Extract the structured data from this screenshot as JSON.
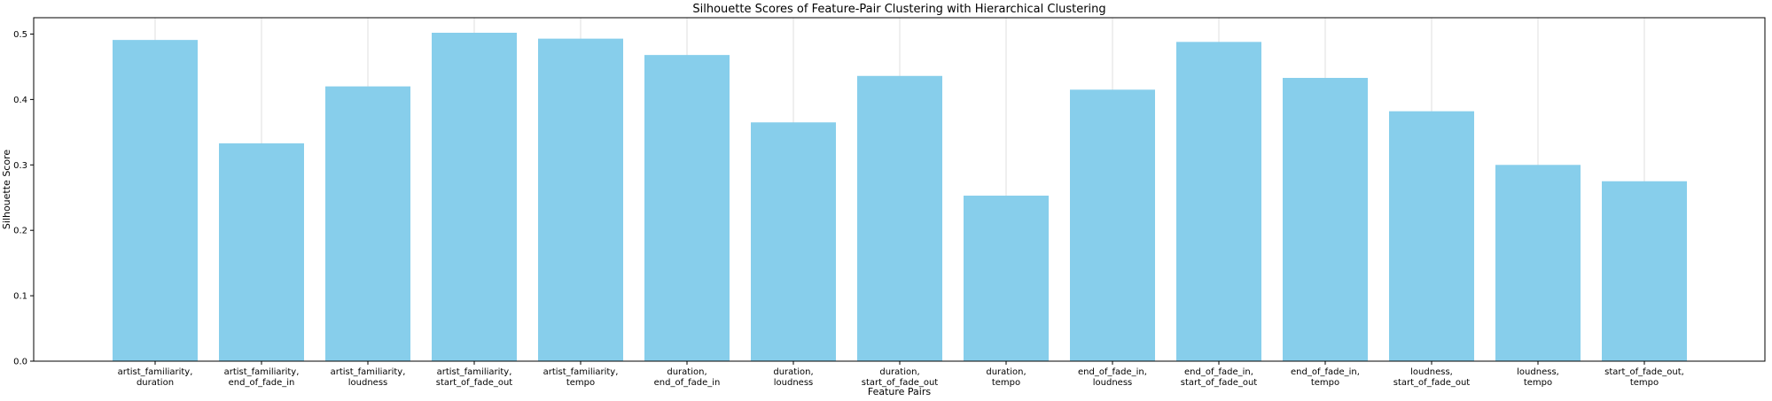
{
  "chart_data": {
    "type": "bar",
    "title": "Silhouette Scores of Feature-Pair Clustering with Hierarchical Clustering",
    "xlabel": "Feature Pairs",
    "ylabel": "Silhouette Score",
    "ylim": [
      0,
      0.525
    ],
    "yticks": [
      0.0,
      0.1,
      0.2,
      0.3,
      0.4,
      0.5
    ],
    "ytick_labels": [
      "0.0",
      "0.1",
      "0.2",
      "0.3",
      "0.4",
      "0.5"
    ],
    "grid": "vertical",
    "bar_color": "#87ceeb",
    "categories": [
      [
        "artist_familiarity,",
        "duration"
      ],
      [
        "artist_familiarity,",
        "end_of_fade_in"
      ],
      [
        "artist_familiarity,",
        "loudness"
      ],
      [
        "artist_familiarity,",
        "start_of_fade_out"
      ],
      [
        "artist_familiarity,",
        "tempo"
      ],
      [
        "duration,",
        "end_of_fade_in"
      ],
      [
        "duration,",
        "loudness"
      ],
      [
        "duration,",
        "start_of_fade_out"
      ],
      [
        "duration,",
        "tempo"
      ],
      [
        "end_of_fade_in,",
        "loudness"
      ],
      [
        "end_of_fade_in,",
        "start_of_fade_out"
      ],
      [
        "end_of_fade_in,",
        "tempo"
      ],
      [
        "loudness,",
        "start_of_fade_out"
      ],
      [
        "loudness,",
        "tempo"
      ],
      [
        "start_of_fade_out,",
        "tempo"
      ]
    ],
    "values": [
      0.491,
      0.333,
      0.42,
      0.502,
      0.493,
      0.468,
      0.365,
      0.436,
      0.253,
      0.415,
      0.488,
      0.433,
      0.382,
      0.3,
      0.275
    ]
  }
}
